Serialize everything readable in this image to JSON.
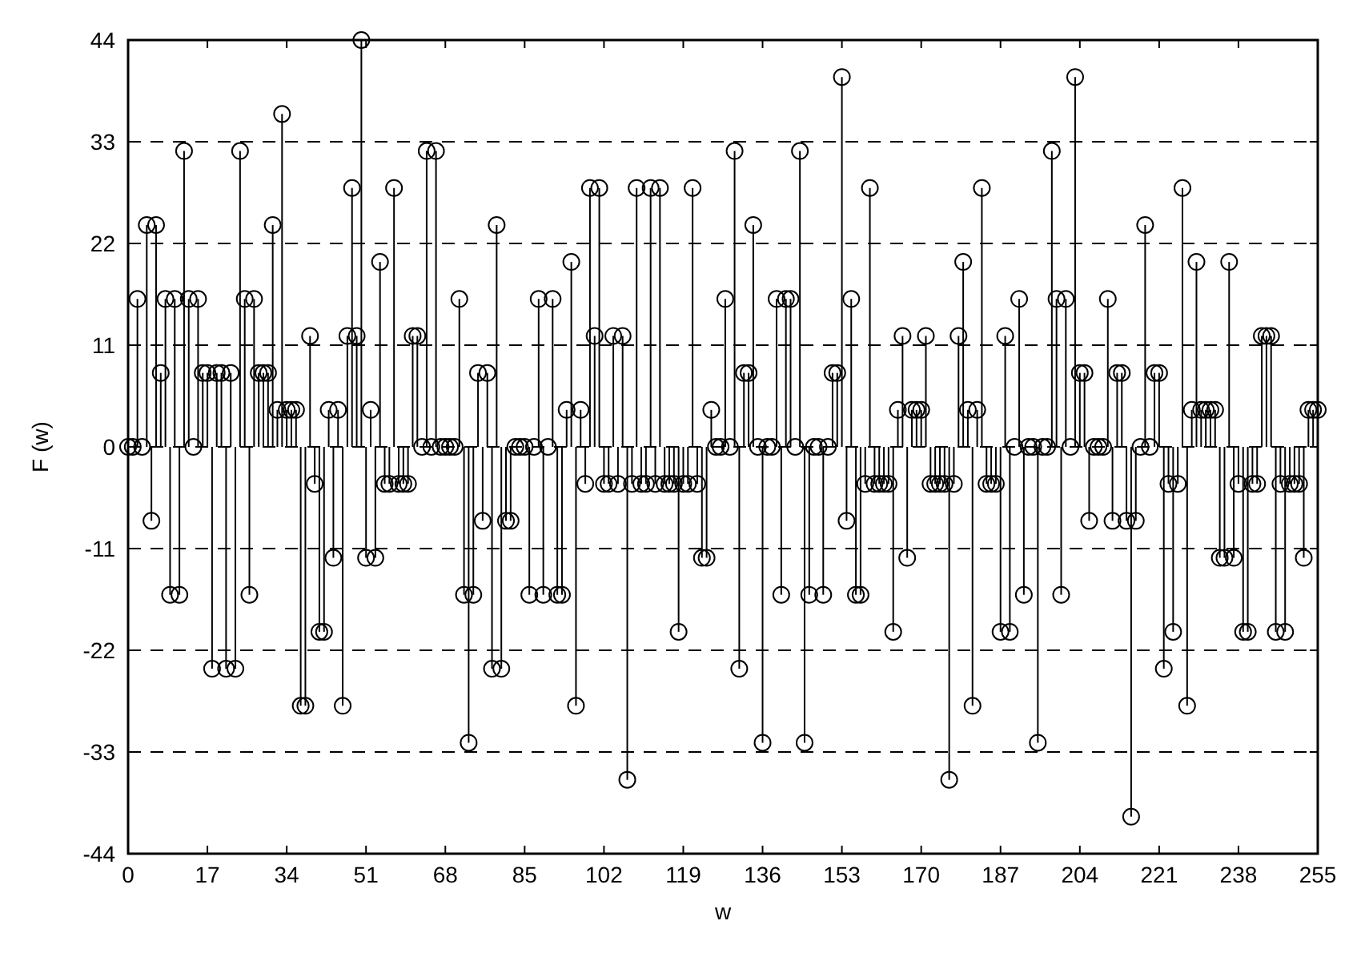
{
  "chart_data": {
    "type": "lollipop",
    "xlabel": "w",
    "ylabel": "F (w)",
    "xlim": [
      0,
      255
    ],
    "xticks": [
      0,
      17,
      34,
      51,
      68,
      85,
      102,
      119,
      136,
      153,
      170,
      187,
      204,
      221,
      238,
      255
    ],
    "ylim": [
      -44,
      44
    ],
    "yticks": [
      -44,
      -33,
      -22,
      -11,
      0,
      11,
      22,
      33,
      44
    ],
    "grid": "y",
    "marker": "circle",
    "series": [
      {
        "color": "#000000",
        "x": [
          0,
          1,
          2,
          3,
          4,
          5,
          6,
          7,
          8,
          9,
          10,
          11,
          12,
          13,
          14,
          15,
          16,
          17,
          18,
          19,
          20,
          21,
          22,
          23,
          24,
          25,
          26,
          27,
          28,
          29,
          30,
          31,
          32,
          33,
          34,
          35,
          36,
          37,
          38,
          39,
          40,
          41,
          42,
          43,
          44,
          45,
          46,
          47,
          48,
          49,
          50,
          51,
          52,
          53,
          54,
          55,
          56,
          57,
          58,
          59,
          60,
          61,
          62,
          63,
          64,
          65,
          66,
          67,
          68,
          69,
          70,
          71,
          72,
          73,
          74,
          75,
          76,
          77,
          78,
          79,
          80,
          81,
          82,
          83,
          84,
          85,
          86,
          87,
          88,
          89,
          90,
          91,
          92,
          93,
          94,
          95,
          96,
          97,
          98,
          99,
          100,
          101,
          102,
          103,
          104,
          105,
          106,
          107,
          108,
          109,
          110,
          111,
          112,
          113,
          114,
          115,
          116,
          117,
          118,
          119,
          120,
          121,
          122,
          123,
          124,
          125,
          126,
          127,
          128,
          129,
          130,
          131,
          132,
          133,
          134,
          135,
          136,
          137,
          138,
          139,
          140,
          141,
          142,
          143,
          144,
          145,
          146,
          147,
          148,
          149,
          150,
          151,
          152,
          153,
          154,
          155,
          156,
          157,
          158,
          159,
          160,
          161,
          162,
          163,
          164,
          165,
          166,
          167,
          168,
          169,
          170,
          171,
          172,
          173,
          174,
          175,
          176,
          177,
          178,
          179,
          180,
          181,
          182,
          183,
          184,
          185,
          186,
          187,
          188,
          189,
          190,
          191,
          192,
          193,
          194,
          195,
          196,
          197,
          198,
          199,
          200,
          201,
          202,
          203,
          204,
          205,
          206,
          207,
          208,
          209,
          210,
          211,
          212,
          213,
          214,
          215,
          216,
          217,
          218,
          219,
          220,
          221,
          222,
          223,
          224,
          225,
          226,
          227,
          228,
          229,
          230,
          231,
          232,
          233,
          234,
          235,
          236,
          237,
          238,
          239,
          240,
          241,
          242,
          243,
          244,
          245,
          246,
          247,
          248,
          249,
          250,
          251,
          252,
          253,
          254,
          255
        ],
        "values": [
          0,
          0,
          16,
          0,
          24,
          -8,
          24,
          8,
          16,
          -16,
          16,
          -16,
          32,
          16,
          0,
          16,
          8,
          8,
          -24,
          8,
          8,
          -24,
          8,
          -24,
          32,
          16,
          -16,
          16,
          8,
          8,
          8,
          24,
          4,
          36,
          4,
          4,
          4,
          -28,
          -28,
          12,
          -4,
          -20,
          -20,
          4,
          -12,
          4,
          -28,
          12,
          28,
          12,
          44,
          -12,
          4,
          -12,
          20,
          -4,
          -4,
          28,
          -4,
          -4,
          -4,
          12,
          12,
          0,
          32,
          0,
          32,
          0,
          0,
          0,
          0,
          16,
          -16,
          -32,
          -16,
          8,
          -8,
          8,
          -24,
          24,
          -24,
          -8,
          -8,
          0,
          0,
          0,
          -16,
          0,
          16,
          -16,
          0,
          16,
          -16,
          -16,
          4,
          20,
          -28,
          4,
          -4,
          28,
          12,
          28,
          -4,
          -4,
          12,
          -4,
          12,
          -36,
          -4,
          28,
          -4,
          -4,
          28,
          -4,
          28,
          -4,
          -4,
          -4,
          -20,
          -4,
          -4,
          28,
          -4,
          -12,
          -12,
          4,
          0,
          0,
          16,
          0,
          32,
          -24,
          8,
          8,
          24,
          0,
          -32,
          0,
          0,
          16,
          -16,
          16,
          16,
          0,
          32,
          -32,
          -16,
          0,
          0,
          -16,
          0,
          8,
          8,
          40,
          -8,
          16,
          -16,
          -16,
          -4,
          28,
          -4,
          -4,
          -4,
          -4,
          -20,
          4,
          12,
          -12,
          4,
          4,
          4,
          12,
          -4,
          -4,
          -4,
          -4,
          -36,
          -4,
          12,
          20,
          4,
          -28,
          4,
          28,
          -4,
          -4,
          -4,
          -20,
          12,
          -20,
          0,
          16,
          -16,
          0,
          0,
          -32,
          0,
          0,
          32,
          16,
          -16,
          16,
          0,
          40,
          8,
          8,
          -8,
          0,
          0,
          0,
          16,
          -8,
          8,
          8,
          -8,
          -40,
          -8,
          0,
          24,
          0,
          8,
          8,
          -24,
          -4,
          -20,
          -4,
          28,
          -28,
          4,
          20,
          4,
          4,
          4,
          4,
          -12,
          -12,
          20,
          -12,
          -4,
          -20,
          -20,
          -4,
          -4,
          12,
          12,
          12,
          -20,
          -4,
          -20,
          -4,
          -4,
          -4,
          -12,
          4,
          4,
          4
        ]
      }
    ]
  }
}
